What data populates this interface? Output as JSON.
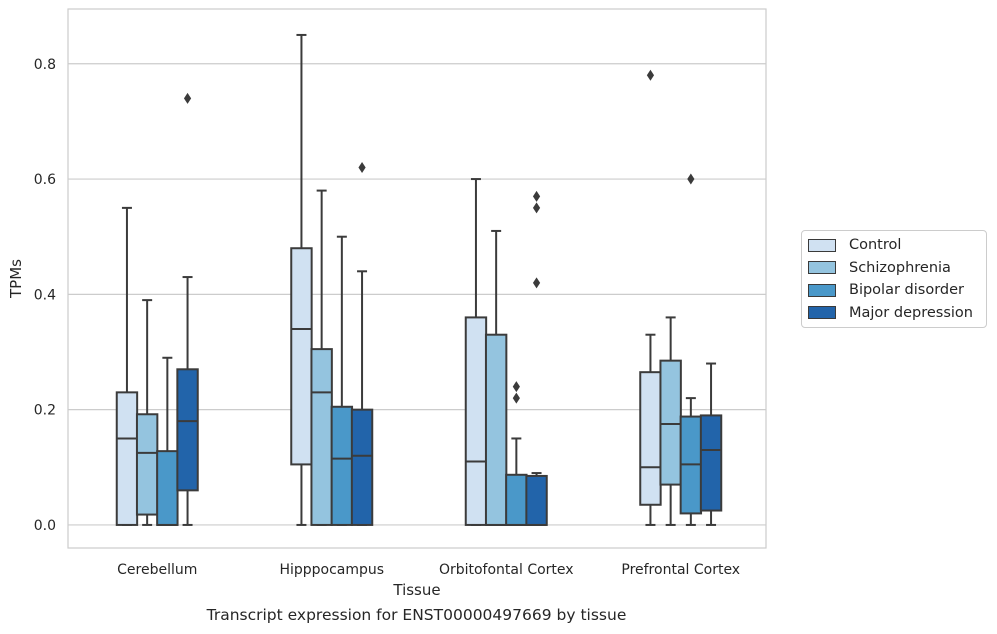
{
  "chart_data": {
    "type": "box",
    "title": "",
    "caption": "Transcript expression for ENST00000497669 by tissue",
    "xlabel": "Tissue",
    "ylabel": "TPMs",
    "ylim": [
      -0.04,
      0.895
    ],
    "yticks": [
      0.0,
      0.2,
      0.4,
      0.6,
      0.8
    ],
    "ytick_labels": [
      "0.0",
      "0.2",
      "0.4",
      "0.6",
      "0.8"
    ],
    "grid": true,
    "legend_position": "right",
    "categories": [
      "Cerebellum",
      "Hipppocampus",
      "Orbitofontal Cortex",
      "Prefrontal Cortex"
    ],
    "series": [
      {
        "name": "Control",
        "color": "#d0e1f2",
        "boxes": [
          {
            "whisker_low": 0.0,
            "q1": 0.0,
            "median": 0.15,
            "q3": 0.23,
            "whisker_high": 0.55,
            "outliers": []
          },
          {
            "whisker_low": 0.0,
            "q1": 0.105,
            "median": 0.34,
            "q3": 0.48,
            "whisker_high": 0.85,
            "outliers": []
          },
          {
            "whisker_low": 0.0,
            "q1": 0.0,
            "median": 0.11,
            "q3": 0.36,
            "whisker_high": 0.6,
            "outliers": []
          },
          {
            "whisker_low": 0.0,
            "q1": 0.035,
            "median": 0.1,
            "q3": 0.265,
            "whisker_high": 0.33,
            "outliers": [
              0.78
            ]
          }
        ]
      },
      {
        "name": "Schizophrenia",
        "color": "#94c4df",
        "boxes": [
          {
            "whisker_low": 0.0,
            "q1": 0.018,
            "median": 0.125,
            "q3": 0.192,
            "whisker_high": 0.39,
            "outliers": []
          },
          {
            "whisker_low": 0.0,
            "q1": 0.0,
            "median": 0.23,
            "q3": 0.305,
            "whisker_high": 0.58,
            "outliers": []
          },
          {
            "whisker_low": 0.0,
            "q1": 0.0,
            "median": 0.0,
            "q3": 0.33,
            "whisker_high": 0.51,
            "outliers": []
          },
          {
            "whisker_low": 0.0,
            "q1": 0.07,
            "median": 0.175,
            "q3": 0.285,
            "whisker_high": 0.36,
            "outliers": []
          }
        ]
      },
      {
        "name": "Bipolar disorder",
        "color": "#4a98c9",
        "boxes": [
          {
            "whisker_low": 0.0,
            "q1": 0.0,
            "median": 0.0,
            "q3": 0.128,
            "whisker_high": 0.29,
            "outliers": []
          },
          {
            "whisker_low": 0.0,
            "q1": 0.0,
            "median": 0.115,
            "q3": 0.205,
            "whisker_high": 0.5,
            "outliers": []
          },
          {
            "whisker_low": 0.0,
            "q1": 0.0,
            "median": 0.0,
            "q3": 0.087,
            "whisker_high": 0.15,
            "outliers": [
              0.22,
              0.24
            ]
          },
          {
            "whisker_low": 0.0,
            "q1": 0.02,
            "median": 0.105,
            "q3": 0.188,
            "whisker_high": 0.22,
            "outliers": [
              0.6
            ]
          }
        ]
      },
      {
        "name": "Major depression",
        "color": "#2264aa",
        "boxes": [
          {
            "whisker_low": 0.0,
            "q1": 0.06,
            "median": 0.18,
            "q3": 0.27,
            "whisker_high": 0.43,
            "outliers": [
              0.74
            ]
          },
          {
            "whisker_low": 0.0,
            "q1": 0.0,
            "median": 0.12,
            "q3": 0.2,
            "whisker_high": 0.44,
            "outliers": [
              0.62
            ]
          },
          {
            "whisker_low": 0.0,
            "q1": 0.0,
            "median": 0.0,
            "q3": 0.085,
            "whisker_high": 0.09,
            "outliers": [
              0.42,
              0.55,
              0.57
            ]
          },
          {
            "whisker_low": 0.0,
            "q1": 0.025,
            "median": 0.13,
            "q3": 0.19,
            "whisker_high": 0.28,
            "outliers": []
          }
        ]
      }
    ]
  }
}
